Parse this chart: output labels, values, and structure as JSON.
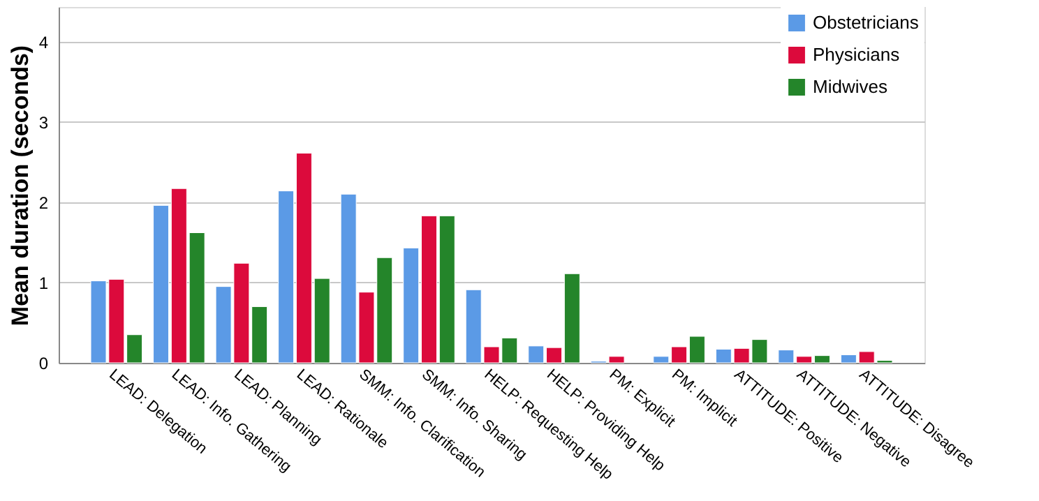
{
  "chart_data": {
    "type": "bar",
    "ylabel": "Mean duration (seconds)",
    "categories": [
      "LEAD: Delegation",
      "LEAD: Info. Gathering",
      "LEAD: Planning",
      "LEAD: Rationale",
      "SMM: Info. Clarification",
      "SMM: Info. Sharing",
      "HELP: Requesting Help",
      "HELP: Providing Help",
      "PM: Explicit",
      "PM: Implicit",
      "ATTITUDE: Positive",
      "ATTITUDE: Negative",
      "ATTITUDE: Disagree"
    ],
    "series": [
      {
        "name": "Obstetricians",
        "color": "#5b9ae6",
        "values": [
          1.02,
          1.96,
          0.95,
          2.14,
          2.1,
          1.43,
          0.91,
          0.21,
          0.02,
          0.08,
          0.17,
          0.16,
          0.1
        ]
      },
      {
        "name": "Physicians",
        "color": "#dc0a3c",
        "values": [
          1.04,
          2.17,
          1.24,
          2.61,
          0.88,
          1.83,
          0.2,
          0.19,
          0.08,
          0.2,
          0.18,
          0.08,
          0.14
        ]
      },
      {
        "name": "Midwives",
        "color": "#24852a",
        "values": [
          0.35,
          1.62,
          0.7,
          1.05,
          1.31,
          1.83,
          0.31,
          1.11,
          null,
          0.33,
          0.29,
          0.09,
          0.03
        ]
      }
    ],
    "ylim": [
      0,
      4.43
    ],
    "yticks": [
      0,
      1,
      2,
      3,
      4
    ],
    "grid": "y",
    "legend": "top right"
  }
}
